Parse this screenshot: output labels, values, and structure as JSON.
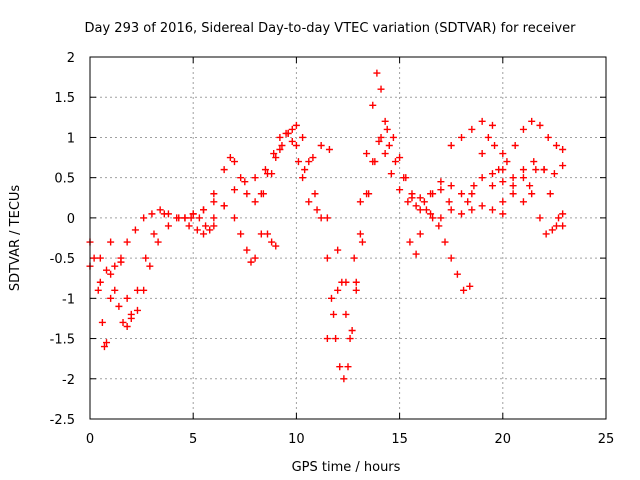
{
  "chart_data": {
    "type": "scatter",
    "title": "Day 293 of 2016, Sidereal Day-to-day VTEC variation (SDTVAR) for receiver",
    "xlabel": "GPS time / hours",
    "ylabel": "SDTVAR / TECUs",
    "xlim": [
      0,
      25
    ],
    "ylim": [
      -2.5,
      2
    ],
    "x_ticks": [
      0,
      5,
      10,
      15,
      20,
      25
    ],
    "y_ticks": [
      -2.5,
      -2,
      -1.5,
      -1,
      -0.5,
      0,
      0.5,
      1,
      1.5,
      2
    ],
    "x_tick_labels": [
      "0",
      "5",
      "10",
      "15",
      "20",
      "25"
    ],
    "y_tick_labels": [
      "-2.5",
      "-2",
      "-1.5",
      "-1",
      "-0.5",
      "0",
      "0.5",
      "1",
      "1.5",
      "2"
    ],
    "grid": true,
    "marker": "+",
    "marker_color": "#ff0000",
    "series": [
      {
        "x": [
          0.0,
          0.2,
          0.4,
          0.6,
          0.7,
          0.8,
          1.0,
          1.2,
          1.5,
          1.8,
          2.2,
          2.6,
          3.0,
          3.4,
          3.8,
          4.2,
          4.6,
          5.0,
          5.3,
          5.6
        ],
        "y": [
          -0.3,
          -0.5,
          -0.9,
          -1.3,
          -1.6,
          -1.55,
          -1.0,
          -0.6,
          -0.5,
          -0.3,
          -0.15,
          0.0,
          0.05,
          0.1,
          0.05,
          0.0,
          0.0,
          0.05,
          0.0,
          -0.1
        ]
      },
      {
        "x": [
          0.0,
          0.5,
          1.0,
          1.5,
          1.8,
          2.0,
          2.3,
          2.6,
          2.9,
          3.3,
          3.8,
          4.3,
          4.8,
          5.2,
          5.5,
          5.8,
          6.0
        ],
        "y": [
          -0.6,
          -0.5,
          -0.3,
          -0.55,
          -1.0,
          -1.25,
          -1.15,
          -0.9,
          -0.6,
          -0.3,
          -0.1,
          0.0,
          -0.1,
          -0.15,
          -0.2,
          -0.15,
          -0.1
        ]
      },
      {
        "x": [
          0.5,
          0.8,
          1.0,
          1.2,
          1.4,
          1.6,
          1.8,
          2.0,
          2.3,
          2.7,
          3.1,
          3.6
        ],
        "y": [
          -0.8,
          -0.65,
          -0.7,
          -0.9,
          -1.1,
          -1.3,
          -1.35,
          -1.2,
          -0.9,
          -0.5,
          -0.2,
          0.05
        ]
      },
      {
        "x": [
          4.6,
          5.0,
          5.5,
          6.0,
          6.5,
          6.8,
          7.0,
          7.3,
          7.6,
          8.0,
          8.4,
          8.8,
          9.2,
          9.6,
          10.0,
          10.3,
          10.6,
          10.9,
          11.2,
          11.5,
          11.7,
          11.9,
          12.1,
          12.3,
          12.5,
          12.7,
          12.9,
          13.1,
          13.4,
          13.7,
          14.0,
          14.3,
          14.6,
          15.0,
          15.4,
          15.8,
          16.2,
          16.6,
          17.0,
          17.4
        ],
        "y": [
          0.0,
          0.05,
          0.1,
          0.3,
          0.6,
          0.75,
          0.7,
          0.5,
          0.3,
          0.2,
          0.3,
          0.55,
          0.85,
          1.05,
          1.15,
          1.0,
          0.7,
          0.3,
          0.0,
          -0.5,
          -1.0,
          -1.5,
          -1.85,
          -2.0,
          -1.85,
          -1.4,
          -0.8,
          -0.2,
          0.3,
          0.7,
          0.95,
          0.8,
          0.55,
          0.35,
          0.2,
          0.15,
          0.2,
          0.3,
          0.35,
          0.2
        ]
      },
      {
        "x": [
          6.0,
          6.5,
          7.0,
          7.5,
          8.0,
          8.5,
          9.0,
          9.3,
          9.6,
          9.8,
          10.0,
          10.3,
          10.6,
          11.0,
          11.5,
          12.0,
          12.4,
          12.8,
          13.1,
          13.4,
          13.7,
          13.9,
          14.1,
          14.3,
          14.5,
          14.8,
          15.2,
          15.6,
          16.0
        ],
        "y": [
          0.0,
          0.15,
          0.35,
          0.45,
          0.5,
          0.6,
          0.75,
          0.9,
          1.05,
          1.1,
          0.9,
          0.5,
          0.2,
          0.1,
          0.0,
          -0.4,
          -0.8,
          -0.5,
          0.2,
          0.8,
          1.4,
          1.8,
          1.6,
          1.2,
          0.9,
          0.7,
          0.5,
          0.3,
          0.25
        ]
      },
      {
        "x": [
          8.3,
          8.6,
          8.9,
          9.2,
          9.5,
          9.8,
          10.1,
          10.4,
          10.8,
          11.2,
          11.6
        ],
        "y": [
          0.3,
          0.55,
          0.8,
          1.0,
          1.05,
          0.95,
          0.7,
          0.6,
          0.75,
          0.9,
          0.85
        ]
      },
      {
        "x": [
          4.9,
          5.5,
          6.0,
          6.5,
          7.0,
          7.3,
          7.6,
          7.8,
          8.0,
          8.3,
          8.6,
          8.8,
          9.0
        ],
        "y": [
          0.0,
          0.1,
          0.2,
          0.15,
          0.0,
          -0.2,
          -0.4,
          -0.55,
          -0.5,
          -0.2,
          -0.2,
          -0.3,
          -0.35
        ]
      },
      {
        "x": [
          11.5,
          11.8,
          12.0,
          12.2,
          12.4,
          12.6,
          12.9,
          13.2,
          13.5,
          13.8,
          14.1,
          14.4,
          14.7,
          15.0,
          15.3,
          15.6,
          16.0,
          16.5,
          17.0,
          17.5,
          18.0,
          18.5,
          19.0,
          19.5,
          20.0
        ],
        "y": [
          -1.5,
          -1.2,
          -0.9,
          -0.8,
          -1.2,
          -1.5,
          -0.9,
          -0.3,
          0.3,
          0.7,
          1.0,
          1.1,
          1.0,
          0.75,
          0.5,
          0.25,
          0.1,
          0.05,
          0.0,
          0.1,
          0.05,
          0.1,
          0.15,
          0.1,
          0.05
        ]
      },
      {
        "x": [
          15.5,
          15.8,
          16.0,
          16.3,
          16.6,
          16.9,
          17.2,
          17.5,
          17.8,
          18.1,
          18.4
        ],
        "y": [
          -0.3,
          -0.45,
          -0.2,
          0.1,
          0.0,
          -0.1,
          -0.3,
          -0.5,
          -0.7,
          -0.9,
          -0.85
        ]
      },
      {
        "x": [
          16.5,
          17.0,
          17.5,
          18.0,
          18.3,
          18.6,
          19.0,
          19.3,
          19.6,
          20.0
        ],
        "y": [
          0.3,
          0.45,
          0.4,
          0.3,
          0.2,
          0.4,
          0.8,
          1.0,
          0.9,
          0.6
        ]
      },
      {
        "x": [
          17.5,
          18.0,
          18.5,
          19.0,
          19.5,
          20.0,
          20.5,
          21.0,
          21.3,
          21.6,
          22.0,
          22.3,
          22.6,
          22.9
        ],
        "y": [
          0.9,
          1.0,
          1.1,
          1.2,
          1.15,
          0.8,
          0.4,
          0.2,
          0.4,
          0.6,
          0.6,
          0.3,
          -0.1,
          -0.1
        ]
      },
      {
        "x": [
          19.8,
          20.2,
          20.6,
          21.0,
          21.4,
          21.8,
          22.2,
          22.6,
          22.9
        ],
        "y": [
          0.6,
          0.7,
          0.9,
          1.1,
          1.2,
          1.15,
          1.0,
          0.9,
          0.85
        ]
      },
      {
        "x": [
          19.5,
          20.0,
          20.5,
          21.0,
          21.5,
          22.0,
          22.5,
          22.9
        ],
        "y": [
          0.55,
          0.45,
          0.5,
          0.6,
          0.7,
          0.6,
          0.55,
          0.65
        ]
      },
      {
        "x": [
          18.5,
          19.0,
          19.5,
          20.0,
          20.5,
          21.0,
          21.4,
          21.8,
          22.1,
          22.4,
          22.7,
          22.9
        ],
        "y": [
          0.3,
          0.5,
          0.4,
          0.2,
          0.3,
          0.5,
          0.3,
          0.0,
          -0.2,
          -0.15,
          0.0,
          0.05
        ]
      }
    ]
  }
}
